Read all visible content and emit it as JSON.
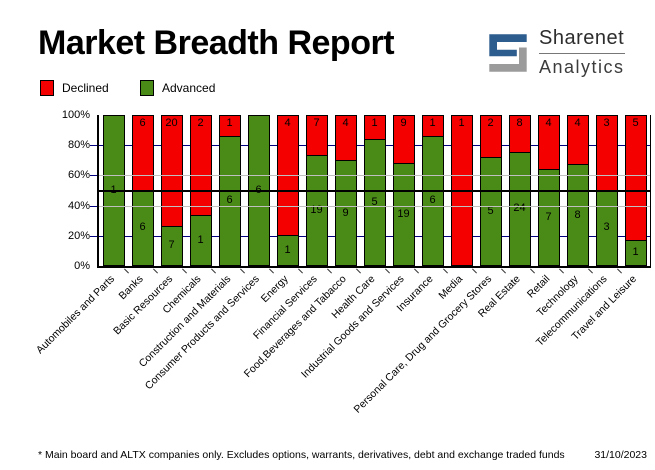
{
  "header": {
    "title": "Market Breadth Report"
  },
  "logo": {
    "name": "Sharenet",
    "sub": "Analytics",
    "blue": "#2d5c8e",
    "gray": "#9b9b9b"
  },
  "legend": [
    {
      "label": "Declined",
      "color": "#f40000"
    },
    {
      "label": "Advanced",
      "color": "#4a8b17"
    }
  ],
  "chart_data": {
    "type": "bar",
    "subtype": "100-percent-stacked-column",
    "title": "Market Breadth Report",
    "categories": [
      "Automobiles and Parts",
      "Banks",
      "Basic Resources",
      "Chemicals",
      "Construction and Materials",
      "Consumer Products and Services",
      "Energy",
      "Financial Services",
      "Food,Beverages and Tabacco",
      "Health Care",
      "Industrial Goods and Services",
      "Insurance",
      "Media",
      "Personal Care, Drug and Grocery Stores",
      "Real Estate",
      "Retail",
      "Technology",
      "Telecommunications",
      "Travel and Leisure"
    ],
    "series": [
      {
        "name": "Declined",
        "color": "#f40000",
        "values": [
          0,
          6,
          20,
          2,
          1,
          0,
          4,
          7,
          4,
          1,
          9,
          1,
          1,
          2,
          8,
          4,
          4,
          3,
          5
        ]
      },
      {
        "name": "Advanced",
        "color": "#4a8b17",
        "values": [
          1,
          6,
          7,
          1,
          6,
          6,
          1,
          19,
          9,
          5,
          19,
          6,
          0,
          5,
          24,
          7,
          8,
          3,
          1
        ]
      }
    ],
    "value_labels": true,
    "y_ticks": [
      "100%",
      "80%",
      "60%",
      "40%",
      "20%",
      "0%"
    ],
    "ylim": [
      0,
      100
    ],
    "grid": {
      "line_80_20_color": "#000080",
      "line_60_40_color": "#c0c0c0",
      "line_50_color": "#000000"
    },
    "legend_position": "top-left"
  },
  "footer": {
    "note": "* Main board and ALTX companies only. Excludes options, warrants, derivatives, debt and exchange traded funds",
    "date": "31/10/2023"
  }
}
